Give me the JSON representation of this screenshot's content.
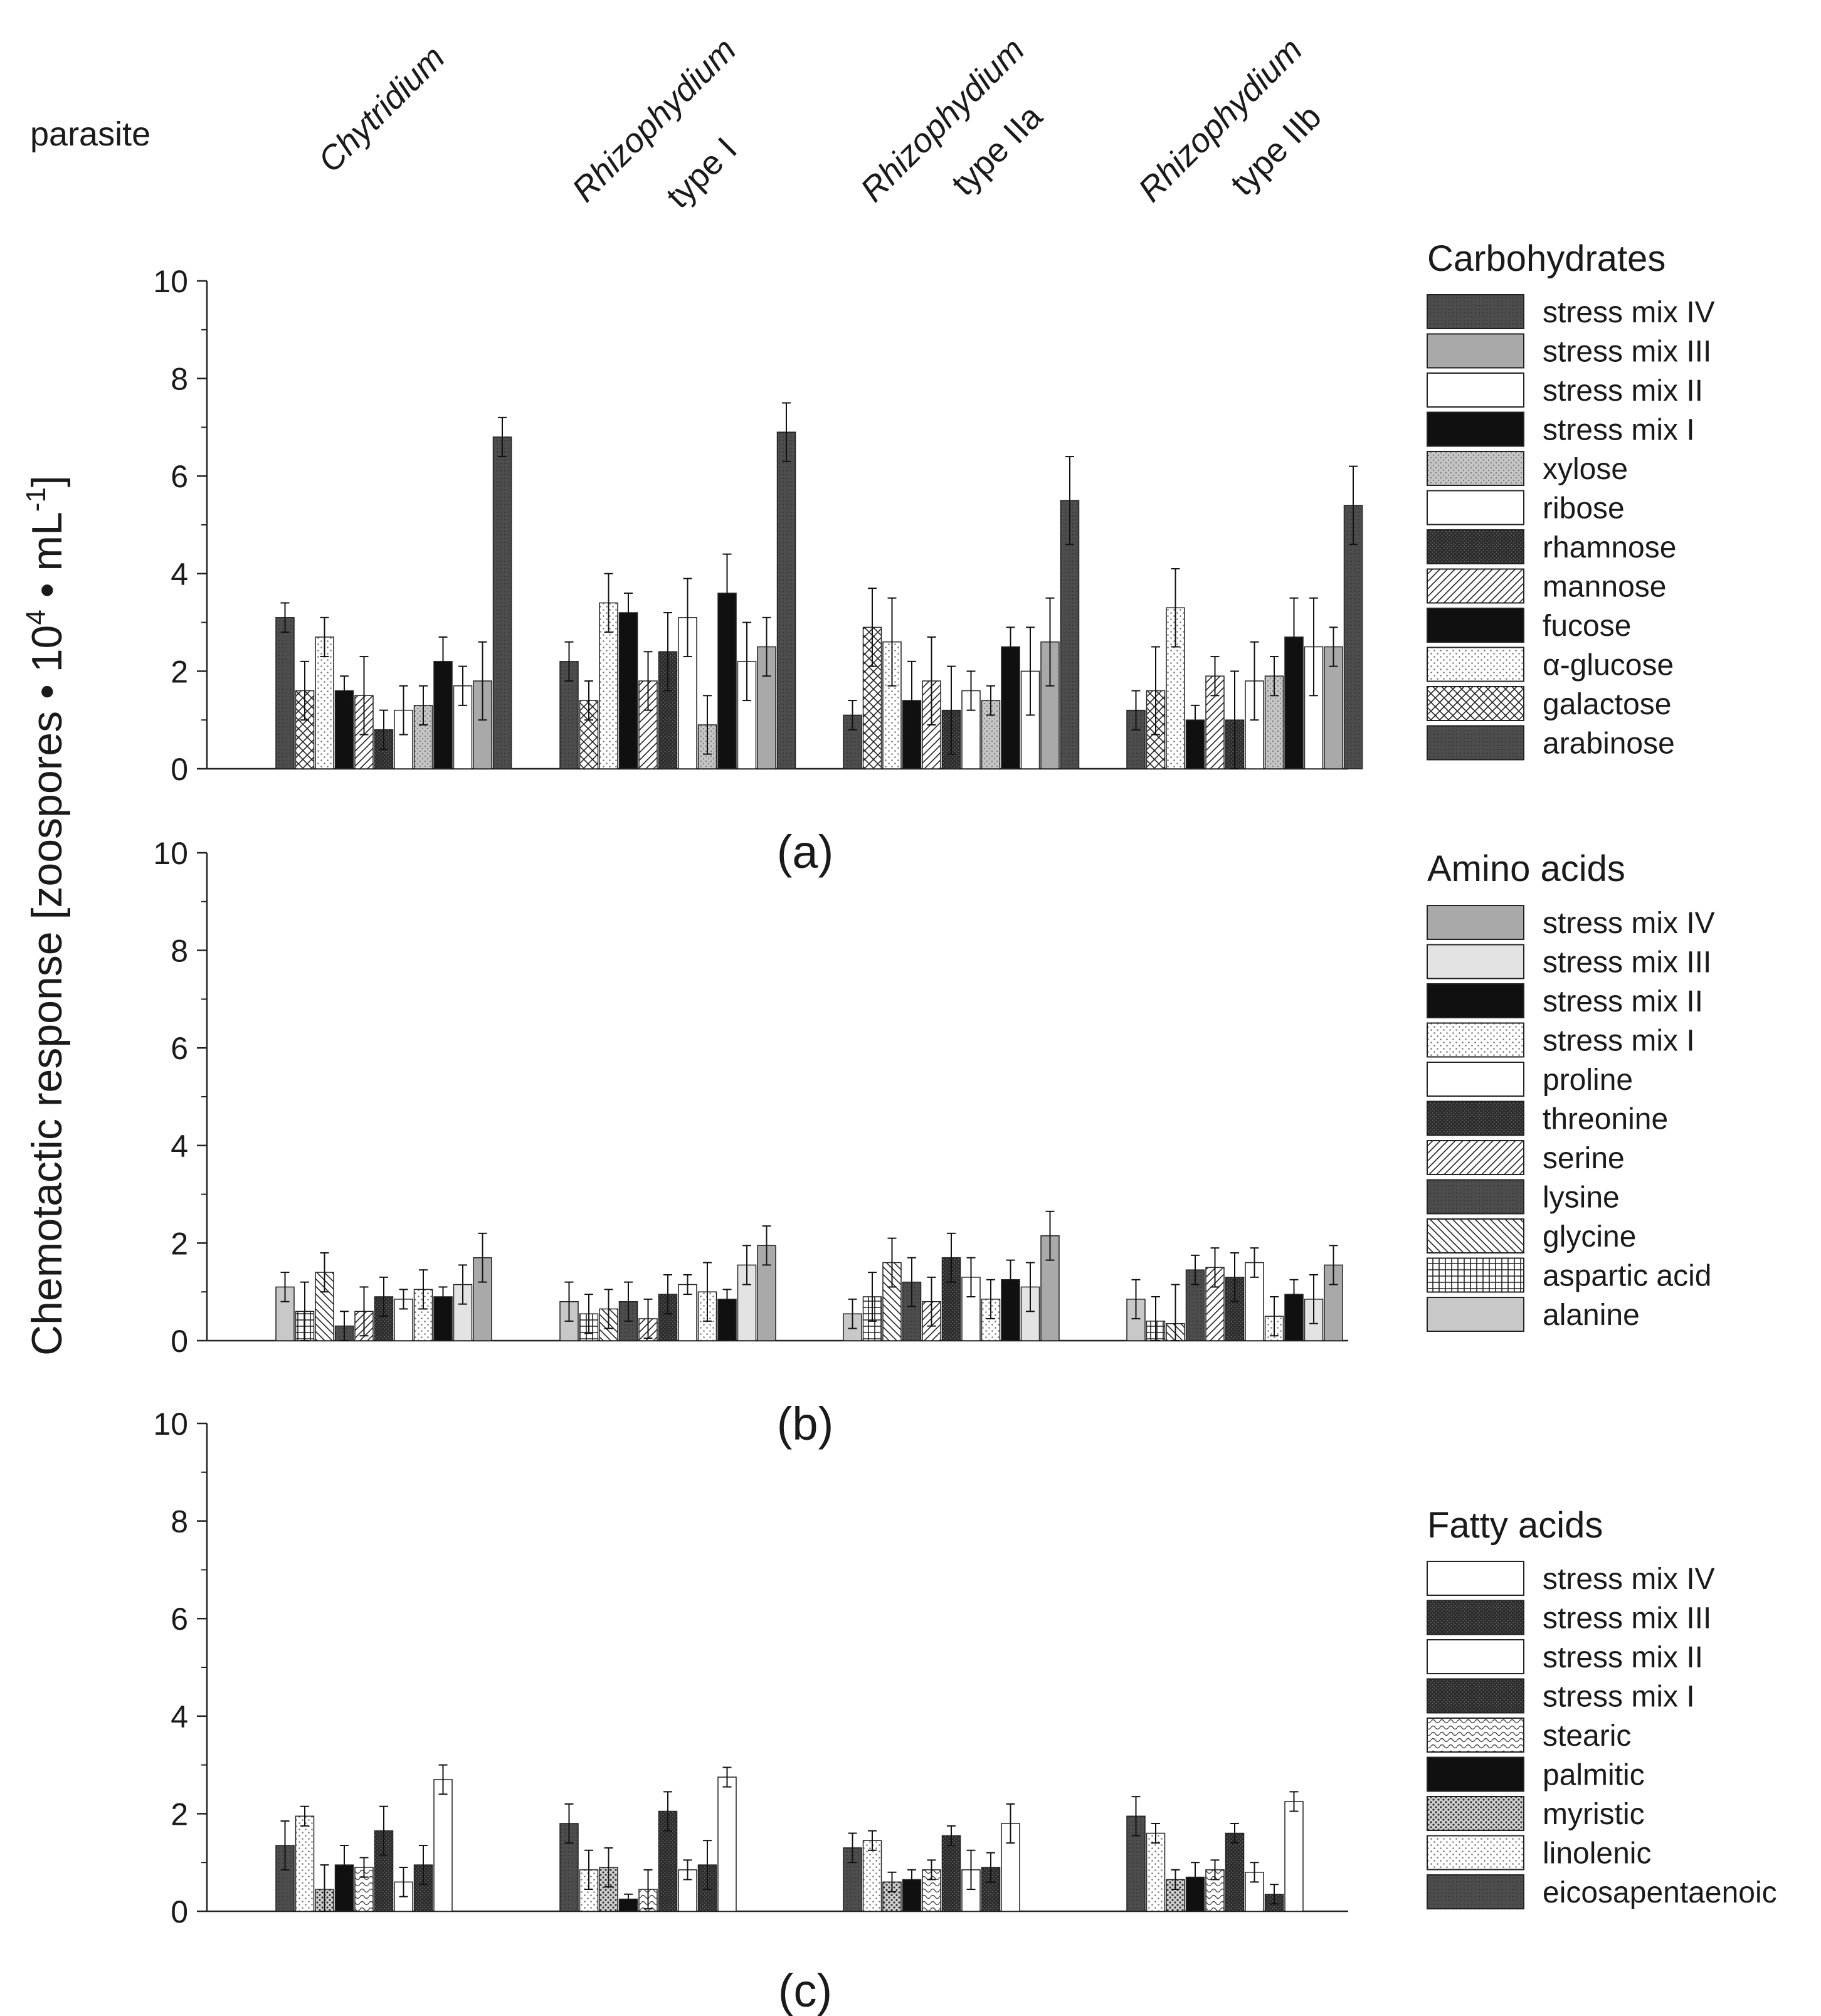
{
  "figure": {
    "header_label": "parasite",
    "ylabel_prefix": "Chemotactic response [zoospores • 10",
    "ylabel_exp1": "4",
    "ylabel_mid": " • mL",
    "ylabel_exp2": "-1",
    "ylabel_suffix": "]",
    "parasites": [
      {
        "line1": "Chytridium",
        "line2": ""
      },
      {
        "line1": "Rhizophydium",
        "line2": "type I"
      },
      {
        "line1": "Rhizophydium",
        "line2": "type IIa"
      },
      {
        "line1": "Rhizophydium",
        "line2": "type IIb"
      }
    ]
  },
  "chart_data": [
    {
      "type": "bar",
      "panel_label": "(a)",
      "legend_title": "Carbohydrates",
      "categories": [
        "Chytridium",
        "Rhizophydium type I",
        "Rhizophydium type IIa",
        "Rhizophydium type IIb"
      ],
      "ylim": [
        0,
        10
      ],
      "yticks": [
        "0",
        "2",
        "4",
        "6",
        "8",
        "10"
      ],
      "series": [
        {
          "name": "arabinose",
          "pattern": "dark",
          "values": [
            3.1,
            2.2,
            1.1,
            1.2
          ],
          "errors": [
            0.3,
            0.4,
            0.3,
            0.4
          ]
        },
        {
          "name": "galactose",
          "pattern": "cross",
          "values": [
            1.6,
            1.4,
            2.9,
            1.6
          ],
          "errors": [
            0.6,
            0.4,
            0.8,
            0.9
          ]
        },
        {
          "name": "α-glucose",
          "pattern": "dots-light",
          "values": [
            2.7,
            3.4,
            2.6,
            3.3
          ],
          "errors": [
            0.4,
            0.6,
            0.9,
            0.8
          ]
        },
        {
          "name": "fucose",
          "pattern": "black",
          "values": [
            1.6,
            3.2,
            1.4,
            1.0
          ],
          "errors": [
            0.3,
            0.4,
            0.8,
            0.3
          ]
        },
        {
          "name": "mannose",
          "pattern": "hatch",
          "values": [
            1.5,
            1.8,
            1.8,
            1.9
          ],
          "errors": [
            0.8,
            0.6,
            0.9,
            0.4
          ]
        },
        {
          "name": "rhamnose",
          "pattern": "dots-dark",
          "values": [
            0.8,
            2.4,
            1.2,
            1.0
          ],
          "errors": [
            0.4,
            0.8,
            0.9,
            1.0
          ]
        },
        {
          "name": "ribose",
          "pattern": "white",
          "values": [
            1.2,
            3.1,
            1.6,
            1.8
          ],
          "errors": [
            0.5,
            0.8,
            0.4,
            0.8
          ]
        },
        {
          "name": "xylose",
          "pattern": "dots-grey",
          "values": [
            1.3,
            0.9,
            1.4,
            1.9
          ],
          "errors": [
            0.4,
            0.6,
            0.3,
            0.4
          ]
        },
        {
          "name": "stress mix I",
          "pattern": "black",
          "values": [
            2.2,
            3.6,
            2.5,
            2.7
          ],
          "errors": [
            0.5,
            0.8,
            0.4,
            0.8
          ]
        },
        {
          "name": "stress mix II",
          "pattern": "white",
          "values": [
            1.7,
            2.2,
            2.0,
            2.5
          ],
          "errors": [
            0.4,
            0.8,
            0.9,
            1.0
          ]
        },
        {
          "name": "stress mix III",
          "pattern": "grey",
          "values": [
            1.8,
            2.5,
            2.6,
            2.5
          ],
          "errors": [
            0.8,
            0.6,
            0.9,
            0.4
          ]
        },
        {
          "name": "stress mix IV",
          "pattern": "dark",
          "values": [
            6.8,
            6.9,
            5.5,
            5.4
          ],
          "errors": [
            0.4,
            0.6,
            0.9,
            0.8
          ]
        }
      ]
    },
    {
      "type": "bar",
      "panel_label": "(b)",
      "legend_title": "Amino acids",
      "categories": [
        "Chytridium",
        "Rhizophydium type I",
        "Rhizophydium type IIa",
        "Rhizophydium type IIb"
      ],
      "ylim": [
        0,
        10
      ],
      "yticks": [
        "0",
        "2",
        "4",
        "6",
        "8",
        "10"
      ],
      "series": [
        {
          "name": "alanine",
          "pattern": "lightgrey",
          "values": [
            1.1,
            0.8,
            0.55,
            0.85
          ],
          "errors": [
            0.3,
            0.4,
            0.3,
            0.4
          ]
        },
        {
          "name": "aspartic acid",
          "pattern": "grid",
          "values": [
            0.6,
            0.55,
            0.9,
            0.4
          ],
          "errors": [
            0.6,
            0.4,
            0.5,
            0.5
          ]
        },
        {
          "name": "glycine",
          "pattern": "hatch-rev",
          "values": [
            1.4,
            0.65,
            1.6,
            0.35
          ],
          "errors": [
            0.4,
            0.4,
            0.5,
            0.8
          ]
        },
        {
          "name": "lysine",
          "pattern": "dark",
          "values": [
            0.3,
            0.8,
            1.2,
            1.45
          ],
          "errors": [
            0.3,
            0.4,
            0.5,
            0.3
          ]
        },
        {
          "name": "serine",
          "pattern": "hatch",
          "values": [
            0.6,
            0.45,
            0.8,
            1.5
          ],
          "errors": [
            0.5,
            0.4,
            0.5,
            0.4
          ]
        },
        {
          "name": "threonine",
          "pattern": "dots-dark",
          "values": [
            0.9,
            0.95,
            1.7,
            1.3
          ],
          "errors": [
            0.4,
            0.4,
            0.5,
            0.5
          ]
        },
        {
          "name": "proline",
          "pattern": "white",
          "values": [
            0.85,
            1.15,
            1.3,
            1.6
          ],
          "errors": [
            0.2,
            0.2,
            0.4,
            0.3
          ]
        },
        {
          "name": "stress mix I",
          "pattern": "dots-light",
          "values": [
            1.05,
            1.0,
            0.85,
            0.5
          ],
          "errors": [
            0.4,
            0.6,
            0.4,
            0.4
          ]
        },
        {
          "name": "stress mix II",
          "pattern": "black",
          "values": [
            0.9,
            0.85,
            1.25,
            0.95
          ],
          "errors": [
            0.2,
            0.2,
            0.4,
            0.3
          ]
        },
        {
          "name": "stress mix III",
          "pattern": "verylight",
          "values": [
            1.15,
            1.55,
            1.1,
            0.85
          ],
          "errors": [
            0.4,
            0.4,
            0.5,
            0.5
          ]
        },
        {
          "name": "stress mix IV",
          "pattern": "grey",
          "values": [
            1.7,
            1.95,
            2.15,
            1.55
          ],
          "errors": [
            0.5,
            0.4,
            0.5,
            0.4
          ]
        }
      ]
    },
    {
      "type": "bar",
      "panel_label": "(c)",
      "legend_title": "Fatty acids",
      "categories": [
        "Chytridium",
        "Rhizophydium type I",
        "Rhizophydium type IIa",
        "Rhizophydium type IIb"
      ],
      "ylim": [
        0,
        10
      ],
      "yticks": [
        "0",
        "2",
        "4",
        "6",
        "8",
        "10"
      ],
      "series": [
        {
          "name": "eicosapentaenoic",
          "pattern": "dark",
          "values": [
            1.35,
            1.8,
            1.3,
            1.95
          ],
          "errors": [
            0.5,
            0.4,
            0.3,
            0.4
          ]
        },
        {
          "name": "linolenic",
          "pattern": "dots-light",
          "values": [
            1.95,
            0.85,
            1.45,
            1.6
          ],
          "errors": [
            0.2,
            0.4,
            0.2,
            0.2
          ]
        },
        {
          "name": "myristic",
          "pattern": "dots-fine",
          "values": [
            0.45,
            0.9,
            0.6,
            0.65
          ],
          "errors": [
            0.5,
            0.4,
            0.2,
            0.2
          ]
        },
        {
          "name": "palmitic",
          "pattern": "black",
          "values": [
            0.95,
            0.25,
            0.65,
            0.7
          ],
          "errors": [
            0.4,
            0.1,
            0.2,
            0.3
          ]
        },
        {
          "name": "stearic",
          "pattern": "wave",
          "values": [
            0.9,
            0.45,
            0.85,
            0.85
          ],
          "errors": [
            0.2,
            0.4,
            0.2,
            0.2
          ]
        },
        {
          "name": "stress mix I",
          "pattern": "dots-dark",
          "values": [
            1.65,
            2.05,
            1.55,
            1.6
          ],
          "errors": [
            0.5,
            0.4,
            0.2,
            0.2
          ]
        },
        {
          "name": "stress mix II",
          "pattern": "white",
          "values": [
            0.6,
            0.85,
            0.85,
            0.8
          ],
          "errors": [
            0.3,
            0.2,
            0.4,
            0.2
          ]
        },
        {
          "name": "stress mix III",
          "pattern": "dots-dark",
          "values": [
            0.95,
            0.95,
            0.9,
            0.35
          ],
          "errors": [
            0.4,
            0.5,
            0.3,
            0.2
          ]
        },
        {
          "name": "stress mix IV",
          "pattern": "white",
          "values": [
            2.7,
            2.75,
            1.8,
            2.25
          ],
          "errors": [
            0.3,
            0.2,
            0.4,
            0.2
          ]
        }
      ]
    }
  ]
}
